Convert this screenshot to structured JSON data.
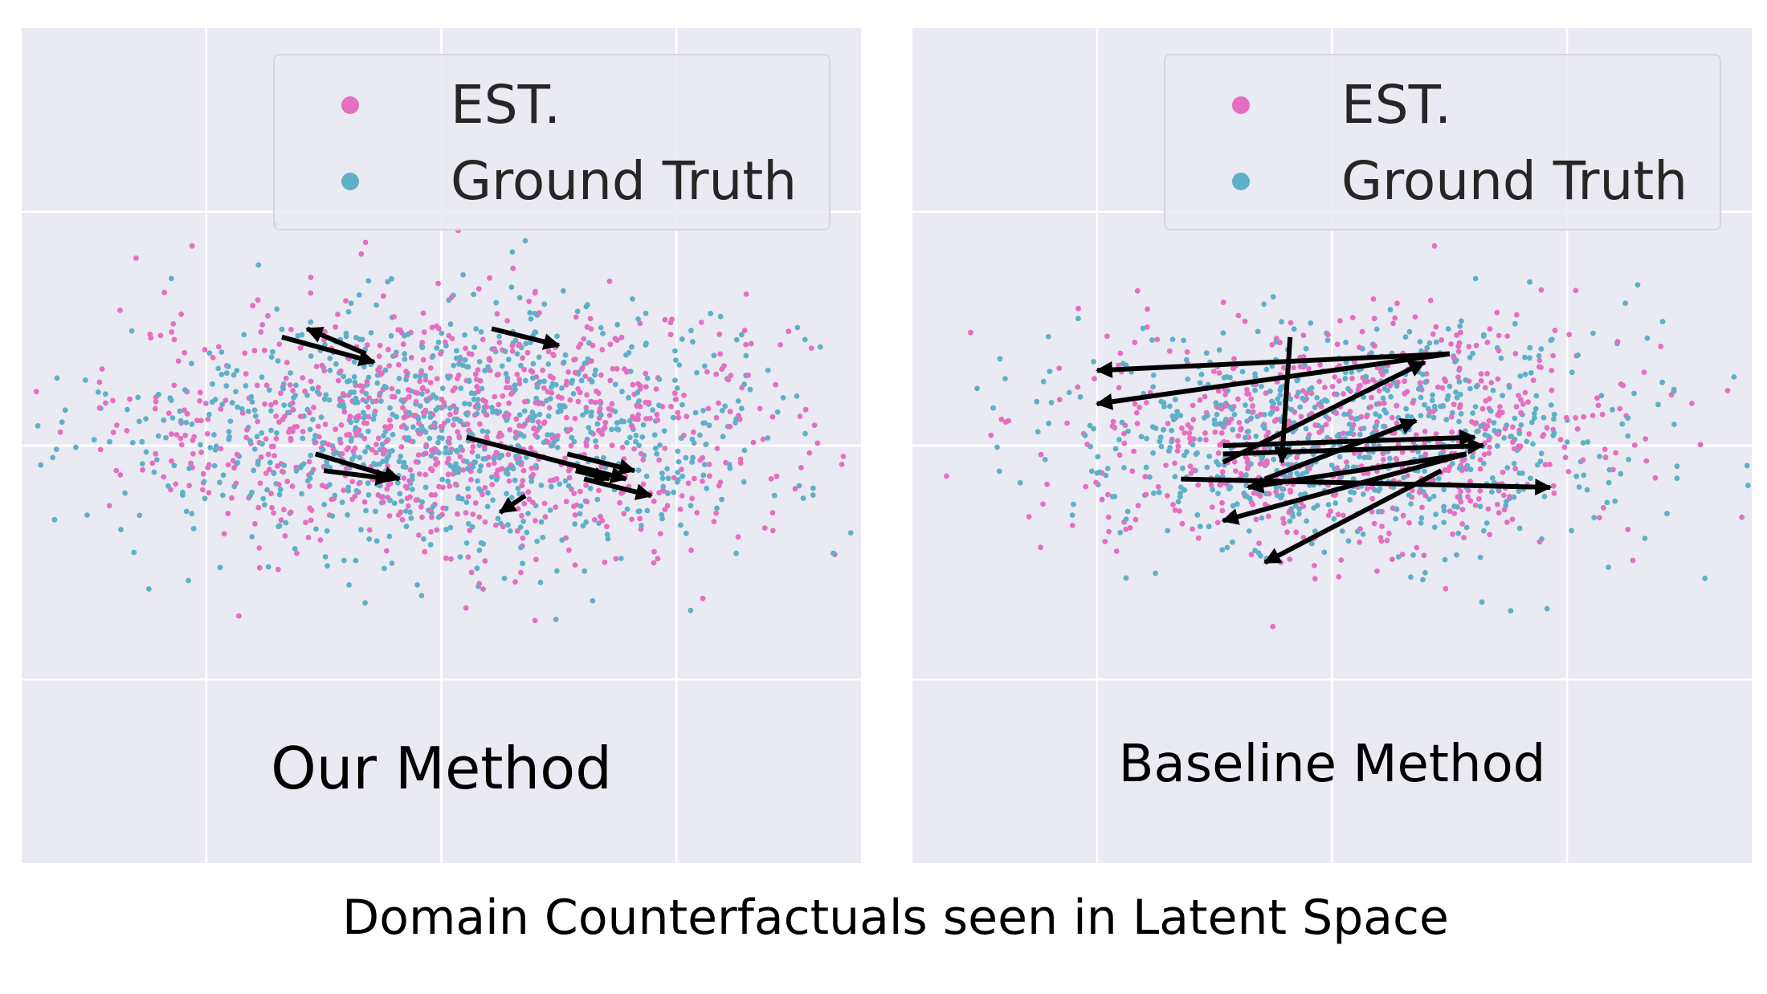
{
  "figure_caption": "Domain Counterfactuals seen in Latent Space",
  "colors": {
    "est": "#e46fc0",
    "ground_truth": "#5eb0c9",
    "background": "#eaeaf2",
    "grid": "#ffffff",
    "arrow": "#000000"
  },
  "chart_data": [
    {
      "type": "scatter",
      "panel_label": "Our Method",
      "legend": [
        {
          "label": "EST.",
          "color": "#e46fc0"
        },
        {
          "label": "Ground Truth",
          "color": "#5eb0c9"
        }
      ],
      "legend_position": "top-right",
      "grid": true,
      "xlim": [
        0,
        1
      ],
      "ylim": [
        0,
        1
      ],
      "series": [
        {
          "name": "EST.",
          "color": "#e46fc0",
          "n_points": 900
        },
        {
          "name": "Ground Truth",
          "color": "#5eb0c9",
          "n_points": 900
        }
      ],
      "point_cloud": {
        "center": [
          0.52,
          0.52
        ],
        "spread": [
          0.2,
          0.075
        ]
      },
      "arrows": [
        [
          0.31,
          0.63,
          0.42,
          0.6
        ],
        [
          0.41,
          0.61,
          0.34,
          0.64
        ],
        [
          0.56,
          0.64,
          0.64,
          0.62
        ],
        [
          0.53,
          0.51,
          0.72,
          0.46
        ],
        [
          0.65,
          0.49,
          0.73,
          0.47
        ],
        [
          0.67,
          0.46,
          0.75,
          0.44
        ],
        [
          0.66,
          0.47,
          0.7,
          0.46
        ],
        [
          0.35,
          0.49,
          0.45,
          0.46
        ],
        [
          0.36,
          0.47,
          0.44,
          0.46
        ],
        [
          0.6,
          0.44,
          0.57,
          0.42
        ]
      ]
    },
    {
      "type": "scatter",
      "panel_label": "Baseline Method",
      "legend": [
        {
          "label": "EST.",
          "color": "#e46fc0"
        },
        {
          "label": "Ground Truth",
          "color": "#5eb0c9"
        }
      ],
      "legend_position": "top-right",
      "grid": true,
      "xlim": [
        0,
        1
      ],
      "ylim": [
        0,
        1
      ],
      "series": [
        {
          "name": "EST.",
          "color": "#e46fc0",
          "n_points": 700
        },
        {
          "name": "Ground Truth",
          "color": "#5eb0c9",
          "n_points": 700
        }
      ],
      "point_cloud": {
        "center": [
          0.52,
          0.51
        ],
        "spread": [
          0.17,
          0.07
        ]
      },
      "arrows": [
        [
          0.64,
          0.61,
          0.22,
          0.59
        ],
        [
          0.64,
          0.61,
          0.22,
          0.55
        ],
        [
          0.45,
          0.63,
          0.44,
          0.48
        ],
        [
          0.37,
          0.48,
          0.61,
          0.6
        ],
        [
          0.37,
          0.5,
          0.67,
          0.51
        ],
        [
          0.37,
          0.49,
          0.68,
          0.5
        ],
        [
          0.32,
          0.46,
          0.76,
          0.45
        ],
        [
          0.42,
          0.46,
          0.6,
          0.53
        ],
        [
          0.66,
          0.49,
          0.37,
          0.41
        ],
        [
          0.63,
          0.47,
          0.42,
          0.36
        ],
        [
          0.66,
          0.49,
          0.4,
          0.45
        ]
      ]
    }
  ]
}
